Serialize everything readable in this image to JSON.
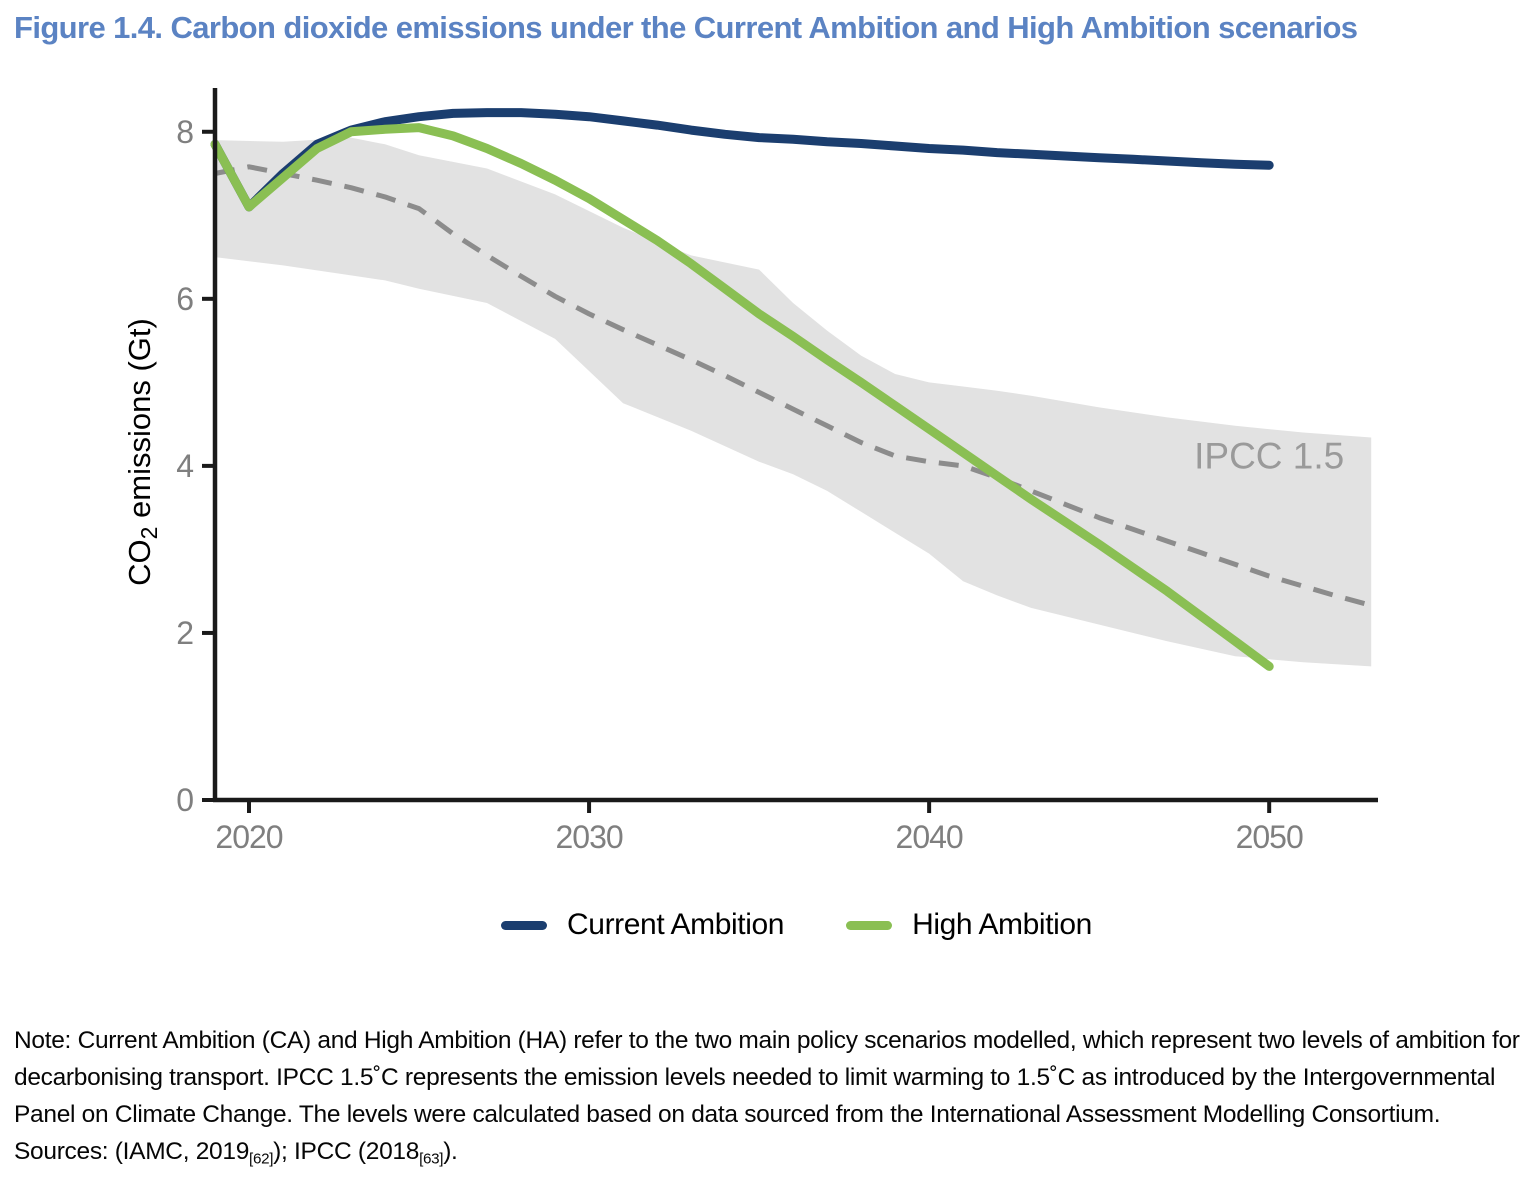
{
  "title": "Figure 1.4. Carbon dioxide emissions under the Current Ambition and High Ambition scenarios",
  "colors": {
    "title": "#5b83c3",
    "current_ambition": "#1b3e6f",
    "high_ambition": "#8abf53",
    "ipcc_band": "#e2e2e2",
    "ipcc_median": "#8c8c8c",
    "annotation": "#9a9a9a",
    "tick_labels": "#7f7f7f",
    "axis": "#1a1a1a"
  },
  "chart_data": {
    "type": "line",
    "title": "",
    "xlabel": "",
    "ylabel": {
      "pre": "CO",
      "sub": "2",
      "post": " emissions (Gt)"
    },
    "xlim": [
      2019,
      2053.2
    ],
    "ylim": [
      0,
      8.5
    ],
    "xticks": [
      2020,
      2030,
      2040,
      2050
    ],
    "yticks": [
      0,
      2,
      4,
      6,
      8
    ],
    "grid": false,
    "legend_position": "bottom",
    "annotation": {
      "text": "IPCC 1.5",
      "x": 2050,
      "y": 3.97
    },
    "band": {
      "name": "IPCC 1.5 range",
      "color": "#e2e2e2",
      "x": [
        2019,
        2021,
        2023,
        2024,
        2025,
        2027,
        2029,
        2031,
        2033,
        2035,
        2036,
        2037,
        2038,
        2039,
        2040,
        2041,
        2042,
        2043,
        2045,
        2047,
        2049,
        2051,
        2053
      ],
      "upper": [
        7.9,
        7.88,
        7.93,
        7.85,
        7.72,
        7.56,
        7.25,
        6.85,
        6.52,
        6.35,
        5.95,
        5.62,
        5.32,
        5.1,
        5.0,
        4.95,
        4.9,
        4.84,
        4.7,
        4.58,
        4.48,
        4.4,
        4.34
      ],
      "lower": [
        6.5,
        6.4,
        6.28,
        6.22,
        6.12,
        5.95,
        5.52,
        4.75,
        4.42,
        4.05,
        3.9,
        3.7,
        3.45,
        3.2,
        2.95,
        2.62,
        2.45,
        2.3,
        2.1,
        1.9,
        1.72,
        1.65,
        1.6
      ]
    },
    "series": [
      {
        "name": "Current Ambition",
        "style": "solid",
        "color": "#1b3e6f",
        "x": [
          2019,
          2020,
          2021,
          2022,
          2023,
          2024,
          2025,
          2026,
          2027,
          2028,
          2029,
          2030,
          2031,
          2032,
          2033,
          2034,
          2035,
          2036,
          2037,
          2038,
          2039,
          2040,
          2041,
          2042,
          2043,
          2044,
          2045,
          2046,
          2047,
          2048,
          2049,
          2050
        ],
        "values": [
          7.85,
          7.1,
          7.5,
          7.85,
          8.02,
          8.12,
          8.18,
          8.22,
          8.23,
          8.23,
          8.21,
          8.18,
          8.13,
          8.08,
          8.02,
          7.97,
          7.93,
          7.91,
          7.88,
          7.86,
          7.83,
          7.8,
          7.78,
          7.75,
          7.73,
          7.71,
          7.69,
          7.67,
          7.65,
          7.63,
          7.61,
          7.6
        ]
      },
      {
        "name": "High Ambition",
        "style": "solid",
        "color": "#8abf53",
        "x": [
          2019,
          2020,
          2021,
          2022,
          2023,
          2024,
          2025,
          2026,
          2027,
          2028,
          2029,
          2030,
          2031,
          2032,
          2033,
          2034,
          2035,
          2036,
          2037,
          2038,
          2039,
          2040,
          2041,
          2042,
          2043,
          2044,
          2045,
          2046,
          2047,
          2048,
          2049,
          2050
        ],
        "values": [
          7.85,
          7.1,
          7.45,
          7.8,
          8.0,
          8.03,
          8.05,
          7.95,
          7.8,
          7.62,
          7.42,
          7.2,
          6.95,
          6.7,
          6.42,
          6.12,
          5.82,
          5.55,
          5.27,
          5.0,
          4.72,
          4.44,
          4.16,
          3.88,
          3.6,
          3.33,
          3.06,
          2.78,
          2.5,
          2.2,
          1.9,
          1.6
        ]
      },
      {
        "name": "IPCC 1.5 median",
        "style": "dashed",
        "color": "#8c8c8c",
        "x": [
          2019,
          2020,
          2021,
          2022,
          2023,
          2024,
          2025,
          2026,
          2027,
          2028,
          2029,
          2030,
          2031,
          2032,
          2033,
          2034,
          2035,
          2036,
          2037,
          2038,
          2039,
          2040,
          2041,
          2042,
          2043,
          2044,
          2045,
          2046,
          2047,
          2048,
          2049,
          2050,
          2051,
          2052,
          2053
        ],
        "values": [
          7.5,
          7.58,
          7.5,
          7.42,
          7.33,
          7.22,
          7.08,
          6.78,
          6.52,
          6.27,
          6.03,
          5.82,
          5.63,
          5.45,
          5.27,
          5.08,
          4.88,
          4.68,
          4.48,
          4.28,
          4.12,
          4.05,
          4.0,
          3.86,
          3.7,
          3.54,
          3.38,
          3.24,
          3.1,
          2.96,
          2.82,
          2.68,
          2.56,
          2.44,
          2.33
        ]
      }
    ]
  },
  "legend": {
    "items": [
      {
        "label": "Current Ambition",
        "color": "#1b3e6f"
      },
      {
        "label": "High Ambition",
        "color": "#8abf53"
      }
    ]
  },
  "note": "Note: Current Ambition (CA) and High Ambition (HA) refer to the two main policy scenarios modelled, which represent two levels of ambition for decarbonising transport. IPCC 1.5˚C represents the emission levels needed to limit warming to 1.5˚C as introduced by the Intergovernmental Panel on Climate Change. The levels were calculated based on data sourced from the International Assessment Modelling Consortium.",
  "sources": {
    "pre": "Sources: (IAMC, 2019",
    "sub1": "[62]",
    "mid": "); IPCC (2018",
    "sub2": "[63]",
    "post": ")."
  }
}
